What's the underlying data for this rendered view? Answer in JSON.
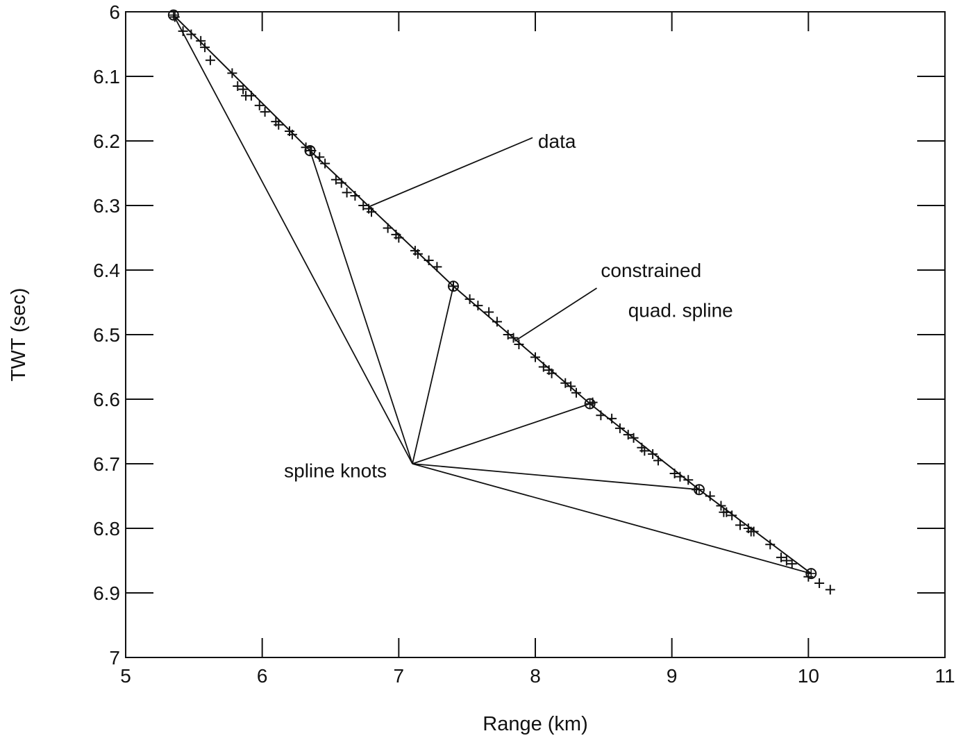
{
  "chart_data": {
    "type": "scatter",
    "title": "",
    "xlabel": "Range (km)",
    "ylabel": "TWT (sec)",
    "xlim": [
      5,
      11
    ],
    "ylim": [
      6,
      7
    ],
    "y_inverted": true,
    "grid": false,
    "x_ticks": [
      "5",
      "6",
      "7",
      "8",
      "9",
      "10",
      "11"
    ],
    "y_ticks": [
      "6",
      "6.1",
      "6.2",
      "6.3",
      "6.4",
      "6.5",
      "6.6",
      "6.7",
      "6.8",
      "6.9",
      "7"
    ],
    "series": [
      {
        "marker": "plus",
        "x": [
          5.36,
          5.42,
          5.48,
          5.55,
          5.58,
          5.62,
          5.78,
          5.82,
          5.86,
          5.88,
          5.92,
          5.98,
          6.02,
          6.1,
          6.12,
          6.2,
          6.22,
          6.32,
          6.36,
          6.42,
          6.46,
          6.54,
          6.58,
          6.62,
          6.68,
          6.74,
          6.78,
          6.8,
          6.92,
          6.98,
          7.0,
          7.12,
          7.14,
          7.22,
          7.28,
          7.4,
          7.52,
          7.58,
          7.66,
          7.72,
          7.8,
          7.84,
          7.88,
          8.0,
          8.06,
          8.1,
          8.12,
          8.22,
          8.26,
          8.3,
          8.42,
          8.48,
          8.56,
          8.62,
          8.68,
          8.72,
          8.78,
          8.8,
          8.86,
          8.9,
          9.02,
          9.06,
          9.12,
          9.18,
          9.28,
          9.36,
          9.38,
          9.4,
          9.44,
          9.5,
          9.56,
          9.58,
          9.6,
          9.72,
          9.8,
          9.84,
          9.88,
          10.0,
          10.08,
          10.16
        ],
        "y": [
          6.008,
          6.03,
          6.035,
          6.045,
          6.055,
          6.075,
          6.095,
          6.115,
          6.12,
          6.13,
          6.13,
          6.145,
          6.155,
          6.17,
          6.175,
          6.185,
          6.19,
          6.21,
          6.215,
          6.225,
          6.235,
          6.26,
          6.265,
          6.28,
          6.285,
          6.3,
          6.305,
          6.31,
          6.335,
          6.345,
          6.35,
          6.37,
          6.375,
          6.385,
          6.395,
          6.425,
          6.445,
          6.455,
          6.465,
          6.48,
          6.5,
          6.505,
          6.515,
          6.535,
          6.55,
          6.555,
          6.56,
          6.575,
          6.58,
          6.59,
          6.605,
          6.625,
          6.63,
          6.645,
          6.655,
          6.66,
          6.675,
          6.68,
          6.685,
          6.695,
          6.715,
          6.72,
          6.725,
          6.74,
          6.75,
          6.765,
          6.775,
          6.775,
          6.78,
          6.795,
          6.8,
          6.805,
          6.805,
          6.825,
          6.845,
          6.85,
          6.855,
          6.875,
          6.885,
          6.895
        ]
      },
      {
        "marker": "circle",
        "x": [
          5.35,
          6.35,
          7.4,
          8.4,
          9.2,
          10.02
        ],
        "y": [
          6.005,
          6.215,
          6.425,
          6.607,
          6.74,
          6.87
        ]
      },
      {
        "marker": "line",
        "x": [
          5.35,
          6.35,
          7.4,
          8.4,
          9.2,
          10.02
        ],
        "y": [
          6.005,
          6.215,
          6.425,
          6.607,
          6.74,
          6.87
        ]
      }
    ],
    "annotations": [
      {
        "text": "data",
        "x": 8.02,
        "y": 6.2,
        "lx1": 7.98,
        "ly1": 6.195,
        "lx2": 6.78,
        "ly2": 6.302
      },
      {
        "text": "constrained",
        "x": 8.48,
        "y": 6.4,
        "lx1": 8.45,
        "ly1": 6.428,
        "lx2": 7.85,
        "ly2": 6.51
      },
      {
        "text": "quad. spline",
        "x": 8.68,
        "y": 6.462
      },
      {
        "text": "spline knots",
        "x": 6.16,
        "y": 6.71,
        "hub_x": 7.1,
        "hub_y": 6.7
      }
    ]
  }
}
